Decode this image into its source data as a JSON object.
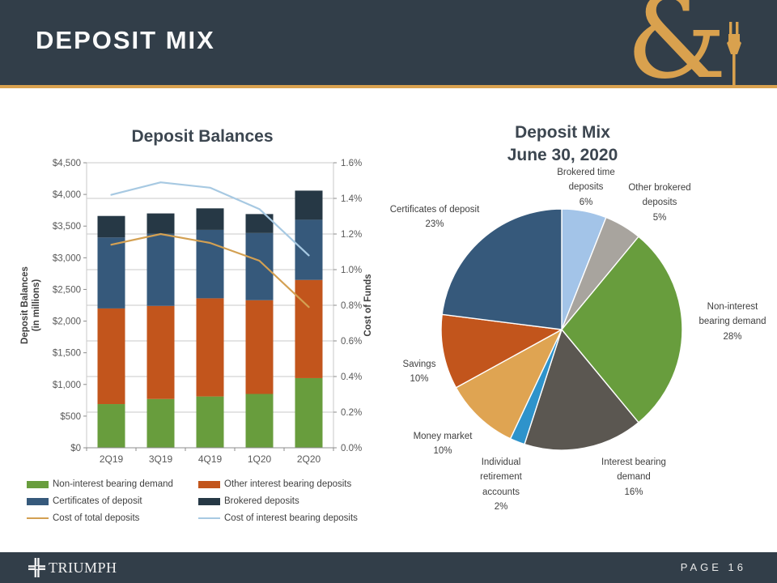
{
  "header": {
    "title": "DEPOSIT MIX",
    "ampersand": "&"
  },
  "footer": {
    "brand": "TRIUMPH",
    "page_label": "PAGE 16"
  },
  "colors": {
    "slate": "#323E49",
    "gold": "#D9A14E",
    "grid": "#CACACA",
    "axis": "#8C8C8C",
    "tick_text": "#595959",
    "label_text": "#404040",
    "title_text": "#3C4650"
  },
  "chart_data": [
    {
      "type": "bar",
      "title": "Deposit Balances",
      "categories": [
        "2Q19",
        "3Q19",
        "4Q19",
        "1Q20",
        "2Q20"
      ],
      "series": [
        {
          "name": "Non-interest bearing demand",
          "kind": "bar",
          "color": "#689D3D",
          "values": [
            690,
            770,
            810,
            850,
            1100
          ]
        },
        {
          "name": "Other interest bearing deposits",
          "kind": "bar",
          "color": "#C2551C",
          "values": [
            1510,
            1470,
            1550,
            1480,
            1550
          ]
        },
        {
          "name": "Certificates of deposit",
          "kind": "bar",
          "color": "#36597B",
          "values": [
            1120,
            1140,
            1080,
            1060,
            950
          ]
        },
        {
          "name": "Brokered deposits",
          "kind": "bar",
          "color": "#263845",
          "values": [
            340,
            320,
            340,
            300,
            460
          ]
        },
        {
          "name": "Cost of total deposits",
          "kind": "line",
          "axis": "right",
          "color": "#D3A052",
          "values": [
            1.14,
            1.2,
            1.15,
            1.05,
            0.79
          ]
        },
        {
          "name": "Cost of interest bearing deposits",
          "kind": "line",
          "axis": "right",
          "color": "#A7C9E2",
          "values": [
            1.42,
            1.49,
            1.46,
            1.34,
            1.08
          ]
        }
      ],
      "ylabel_left": "Deposit Balances",
      "ylabel_left_sub": "(in millions)",
      "ylabel_right": "Cost of Funds",
      "ylim_left": [
        0,
        4500
      ],
      "left_tick_labels": [
        "$0",
        "$500",
        "$1,000",
        "$1,500",
        "$2,000",
        "$2,500",
        "$3,000",
        "$3,500",
        "$4,000",
        "$4,500"
      ],
      "ylim_right": [
        0,
        1.6
      ],
      "right_tick_labels": [
        "0.0%",
        "0.2%",
        "0.4%",
        "0.6%",
        "0.8%",
        "1.0%",
        "1.2%",
        "1.4%",
        "1.6%"
      ],
      "grid": true,
      "legend_position": "bottom"
    },
    {
      "type": "pie",
      "title": "Deposit Mix",
      "subtitle": "June 30, 2020",
      "start_angle_deg": -90,
      "direction": "clockwise",
      "slices": [
        {
          "label": "Brokered time deposits",
          "pct": 6,
          "pct_label": "6%",
          "color": "#A3C4E8"
        },
        {
          "label": "Other brokered deposits",
          "pct": 5,
          "pct_label": "5%",
          "color": "#A8A49E"
        },
        {
          "label": "Non-interest bearing demand",
          "pct": 28,
          "pct_label": "28%",
          "color": "#689D3D"
        },
        {
          "label": "Interest bearing demand",
          "pct": 16,
          "pct_label": "16%",
          "color": "#5B5751"
        },
        {
          "label": "Individual retirement accounts",
          "pct": 2,
          "pct_label": "2%",
          "color": "#2E93CB"
        },
        {
          "label": "Money market",
          "pct": 10,
          "pct_label": "10%",
          "color": "#DFA452"
        },
        {
          "label": "Savings",
          "pct": 10,
          "pct_label": "10%",
          "color": "#C2551C"
        },
        {
          "label": "Certificates of deposit",
          "pct": 23,
          "pct_label": "23%",
          "color": "#36597B"
        }
      ]
    }
  ]
}
